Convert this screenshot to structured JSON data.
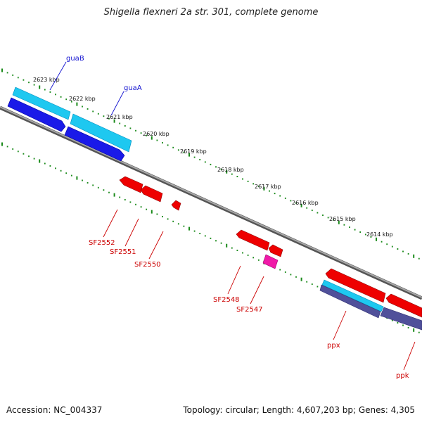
{
  "title": "Shigella flexneri 2a str. 301, complete genome",
  "footer": {
    "accession": "Accession: NC_004337",
    "summary": "Topology: circular; Length: 4,607,203 bp; Genes: 4,305"
  },
  "colors": {
    "backbone": "#808080",
    "tick": "#1a8a1a",
    "forward_cds": "#00b0e0",
    "forward_gene": "#1010e0",
    "reverse_gene": "#e80000",
    "reverse_misc": "#e00090",
    "reverse_cds_purple": "#484890",
    "label_blue": "#1010d0",
    "label_red": "#cc0000"
  },
  "kbp_labels": [
    "2623 kbp",
    "2622 kbp",
    "2621 kbp",
    "2620 kbp",
    "2619 kbp",
    "2618 kbp",
    "2617 kbp",
    "2616 kbp",
    "2615 kbp",
    "2614 kbp"
  ],
  "gene_labels_forward": [
    "guaB",
    "guaA"
  ],
  "gene_labels_reverse": [
    "SF2552",
    "SF2551",
    "SF2550",
    "SF2548",
    "SF2547",
    "ppx",
    "ppk"
  ]
}
